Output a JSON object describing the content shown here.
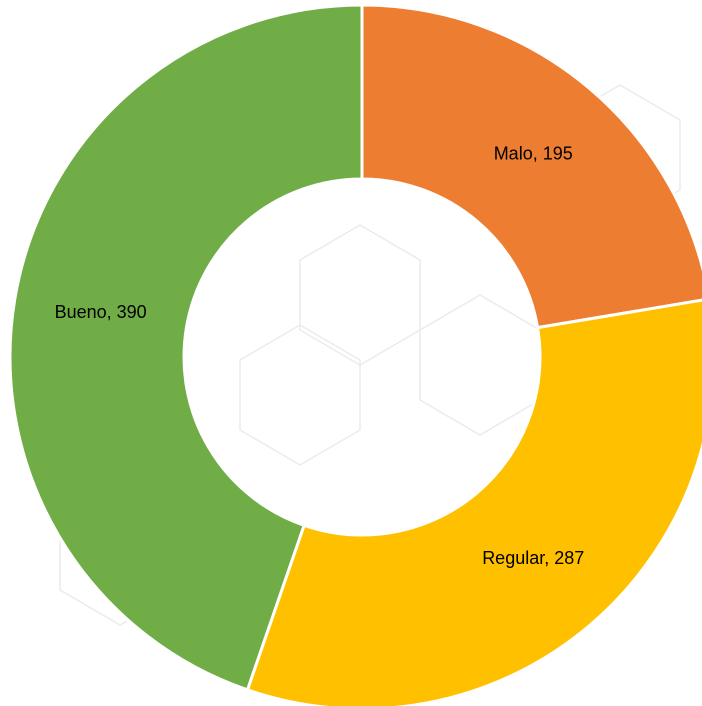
{
  "chart_data": {
    "type": "donut",
    "values": [
      195,
      287,
      390
    ],
    "value_labels": [
      "Malo, 195",
      "Regular, 287",
      "Bueno, 390"
    ],
    "colors": [
      "#ED7D31",
      "#FFC000",
      "#70AD47"
    ]
  }
}
